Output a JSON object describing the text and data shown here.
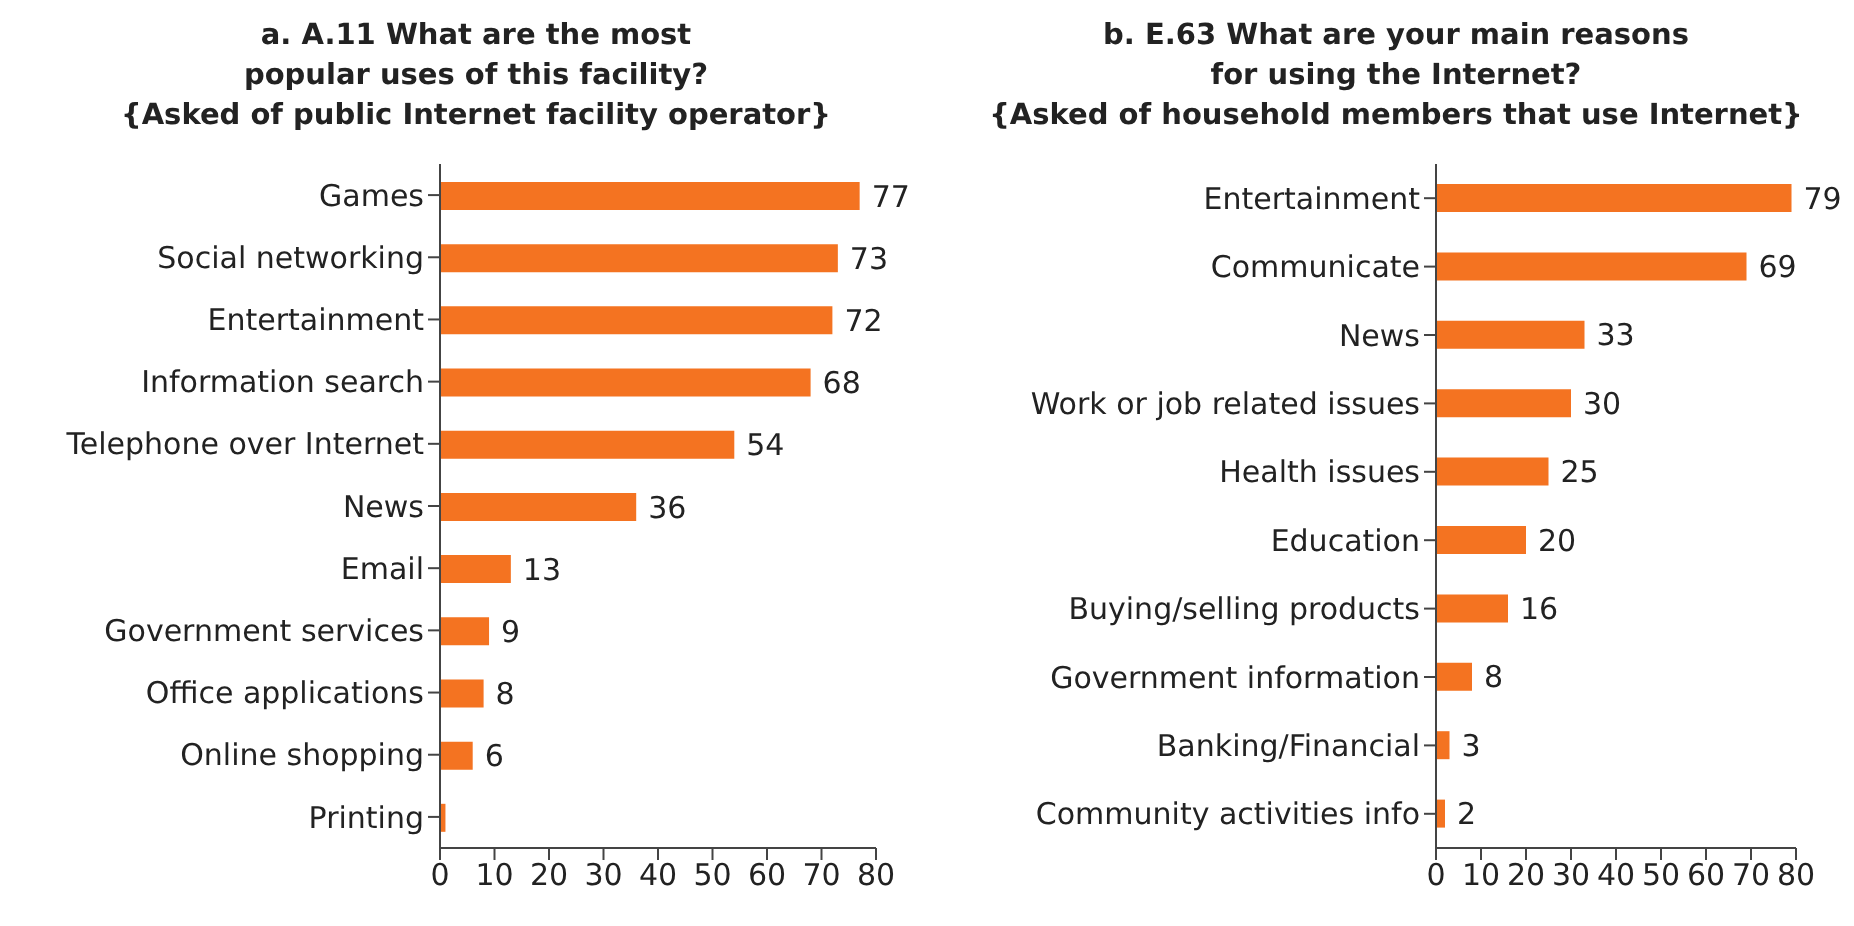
{
  "chart_data": [
    {
      "type": "bar",
      "orientation": "horizontal",
      "title": "a. A.11 What are the most\npopular uses of this facility?\n{Asked of public Internet facility operator}",
      "categories": [
        "Games",
        "Social networking",
        "Entertainment",
        "Information search",
        "Telephone over Internet",
        "News",
        "Email",
        "Government services",
        "Office applications",
        "Online shopping",
        "Printing"
      ],
      "values": [
        77,
        73,
        72,
        68,
        54,
        36,
        13,
        9,
        8,
        6,
        1
      ],
      "value_labels": [
        "77",
        "73",
        "72",
        "68",
        "54",
        "36",
        "13",
        "9",
        "8",
        "6",
        null
      ],
      "color": "#f47321",
      "xlim": [
        0,
        80
      ],
      "xticks": [
        0,
        10,
        20,
        30,
        40,
        50,
        60,
        70,
        80
      ],
      "grid": false,
      "legend": false
    },
    {
      "type": "bar",
      "orientation": "horizontal",
      "title": "b. E.63 What are your main reasons\nfor using the Internet?\n{Asked of household members that use Internet}",
      "categories": [
        "Entertainment",
        "Communicate",
        "News",
        "Work or job related issues",
        "Health issues",
        "Education",
        "Buying/selling products",
        "Government information",
        "Banking/Financial",
        "Community activities info"
      ],
      "values": [
        79,
        69,
        33,
        30,
        25,
        20,
        16,
        8,
        3,
        2
      ],
      "data_labels": true,
      "color": "#f47321",
      "xlim": [
        0,
        80
      ],
      "xticks": [
        0,
        10,
        20,
        30,
        40,
        50,
        60,
        70,
        80
      ],
      "grid": false,
      "legend": false
    }
  ]
}
